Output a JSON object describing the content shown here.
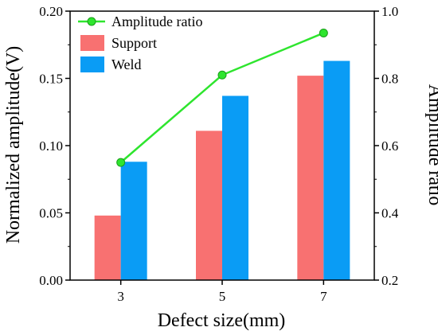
{
  "chart_data": {
    "type": "bar",
    "categories": [
      "3",
      "5",
      "7"
    ],
    "xlabel": "Defect size(mm)",
    "ylabel": "Normalized amplitude(V)",
    "y2label": "Amplitude ratio",
    "ylim": [
      0,
      0.2
    ],
    "y2lim": [
      0.2,
      1.0
    ],
    "yticks": [
      "0.00",
      "0.05",
      "0.10",
      "0.15",
      "0.20"
    ],
    "y2ticks": [
      "0.2",
      "0.4",
      "0.6",
      "0.8",
      "1.0"
    ],
    "legend_position": "top-left",
    "series": [
      {
        "name": "Support",
        "type": "bar",
        "axis": "left",
        "color": "#f87171",
        "values": [
          0.048,
          0.111,
          0.152
        ]
      },
      {
        "name": "Weld",
        "type": "bar",
        "axis": "left",
        "color": "#0a9cf5",
        "values": [
          0.088,
          0.137,
          0.163
        ]
      },
      {
        "name": "Amplitude ratio",
        "type": "line",
        "axis": "right",
        "color": "#2ee52e",
        "marker": "circle",
        "values": [
          0.55,
          0.81,
          0.935
        ]
      }
    ]
  }
}
